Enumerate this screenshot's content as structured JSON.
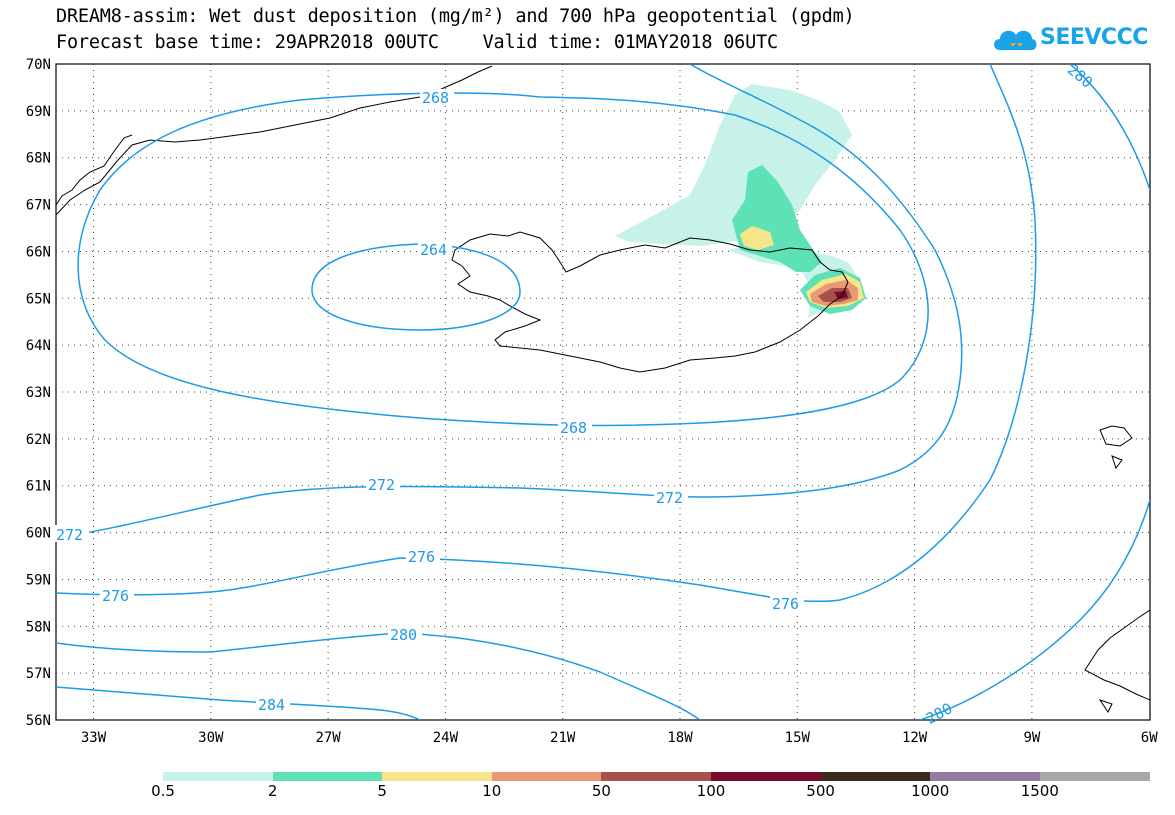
{
  "title": {
    "line1": "DREAM8-assim: Wet dust deposition (mg/m²) and 700 hPa geopotential (gpdm)",
    "line2": "Forecast base time: 29APR2018 00UTC    Valid time: 01MAY2018 06UTC"
  },
  "logo": {
    "text": "SEEVCCC",
    "icon": "cloud-icon",
    "color": "#19a3e8"
  },
  "axes": {
    "lon_labels": [
      "33W",
      "30W",
      "27W",
      "24W",
      "21W",
      "18W",
      "15W",
      "12W",
      "9W",
      "6W"
    ],
    "lat_labels": [
      "70N",
      "69N",
      "68N",
      "67N",
      "66N",
      "65N",
      "64N",
      "63N",
      "62N",
      "61N",
      "60N",
      "59N",
      "58N",
      "57N",
      "56N"
    ]
  },
  "contour_labels": {
    "c264": "264",
    "c268a": "268",
    "c268b": "268",
    "c272a": "272",
    "c272b": "272",
    "c272c": "272",
    "c276a": "276",
    "c276b": "276",
    "c276c": "276",
    "c280a": "280",
    "c280b": "280",
    "c280c": "280",
    "c284": "284"
  },
  "legend": {
    "labels": [
      "0.5",
      "2",
      "5",
      "10",
      "50",
      "100",
      "500",
      "1000",
      "1500"
    ],
    "colors": [
      "#c6f2ea",
      "#5ee1b4",
      "#f6e58a",
      "#ea9a72",
      "#a8514c",
      "#7a0a2c",
      "#3a2a1c",
      "#967aa2",
      "#a8a8a8"
    ]
  },
  "colors": {
    "contour": "#1e9be6",
    "coast": "#000000"
  }
}
